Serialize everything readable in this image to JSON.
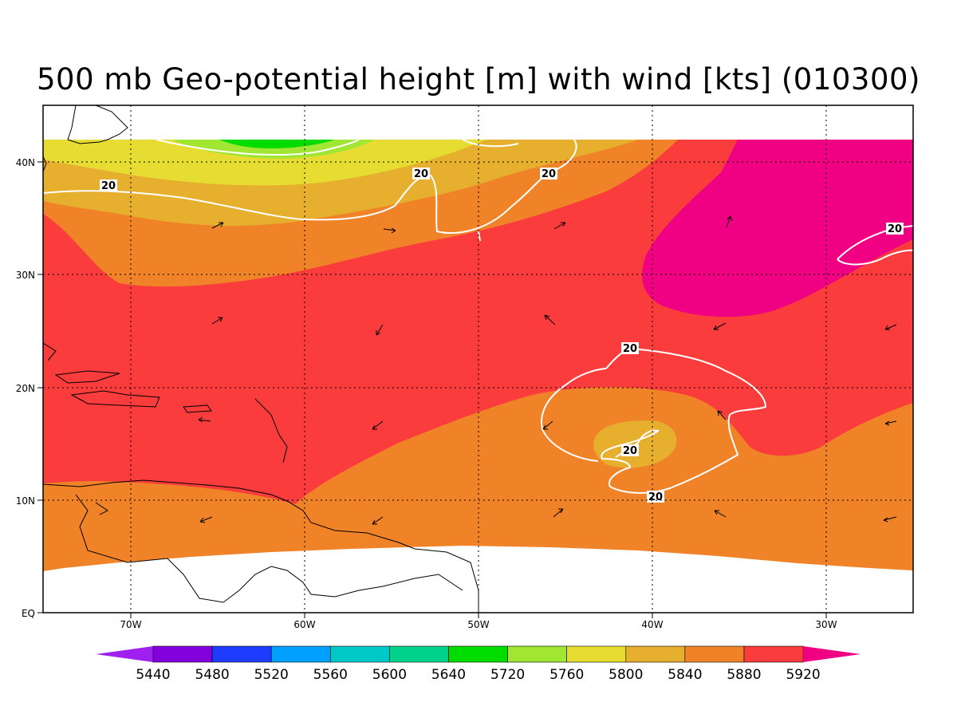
{
  "title": "500 mb Geo-potential height [m] with wind [kts] (010300)",
  "x_ticks": [
    "70W",
    "60W",
    "50W",
    "40W",
    "30W"
  ],
  "y_ticks": [
    "40N",
    "30N",
    "20N",
    "10N",
    "EQ"
  ],
  "colorbar": {
    "labels": [
      "5440",
      "5480",
      "5520",
      "5560",
      "5600",
      "5640",
      "5720",
      "5760",
      "5800",
      "5840",
      "5880",
      "5920"
    ],
    "colors": [
      "#a020f0",
      "#8200dc",
      "#1e3cff",
      "#00a0ff",
      "#00c8c8",
      "#00d28c",
      "#00dc00",
      "#a0e632",
      "#e6dc32",
      "#e6af2d",
      "#f08228",
      "#fa3c3c",
      "#f00082"
    ]
  },
  "field_colors": {
    "h5760": "#a0e632",
    "h5800": "#e6dc32",
    "h5840": "#e6af2d",
    "h5880": "#f08228",
    "h5920": "#fa3c3c",
    "h5960": "#f00082",
    "green": "#00dc00"
  },
  "wind_contour": {
    "color": "#ffffff",
    "labels": [
      "20",
      "20",
      "20",
      "20",
      "20",
      "20"
    ]
  }
}
